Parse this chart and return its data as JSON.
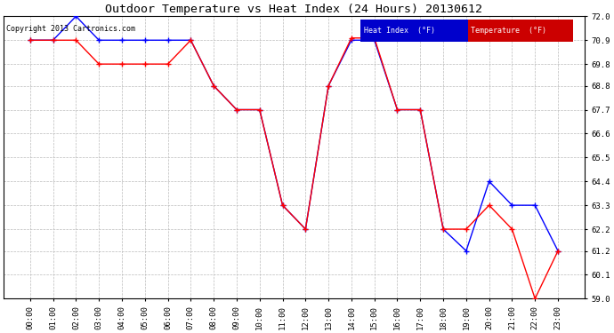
{
  "title": "Outdoor Temperature vs Heat Index (24 Hours) 20130612",
  "copyright": "Copyright 2013 Cartronics.com",
  "background_color": "#ffffff",
  "plot_bg_color": "#ffffff",
  "grid_color": "#bbbbbb",
  "ylim": [
    59.0,
    72.0
  ],
  "yticks": [
    59.0,
    60.1,
    61.2,
    62.2,
    63.3,
    64.4,
    65.5,
    66.6,
    67.7,
    68.8,
    69.8,
    70.9,
    72.0
  ],
  "xticks": [
    "00:00",
    "01:00",
    "02:00",
    "03:00",
    "04:00",
    "05:00",
    "06:00",
    "07:00",
    "08:00",
    "09:00",
    "10:00",
    "11:00",
    "12:00",
    "13:00",
    "14:00",
    "15:00",
    "16:00",
    "17:00",
    "18:00",
    "19:00",
    "20:00",
    "21:00",
    "22:00",
    "23:00"
  ],
  "heat_index_color": "#0000ff",
  "temp_color": "#ff0000",
  "legend_heat_bg": "#0000cc",
  "legend_temp_bg": "#cc0000",
  "heat_index": [
    70.9,
    70.9,
    72.0,
    70.9,
    70.9,
    70.9,
    70.9,
    70.9,
    68.8,
    67.7,
    67.7,
    63.3,
    62.2,
    68.8,
    70.9,
    70.9,
    67.7,
    67.7,
    62.2,
    61.2,
    64.4,
    63.3,
    63.3,
    61.2
  ],
  "temperature": [
    70.9,
    70.9,
    70.9,
    69.8,
    69.8,
    69.8,
    69.8,
    70.9,
    68.8,
    67.7,
    67.7,
    63.3,
    62.2,
    68.8,
    71.0,
    71.0,
    67.7,
    67.7,
    62.2,
    62.2,
    63.3,
    62.2,
    59.0,
    61.2
  ]
}
